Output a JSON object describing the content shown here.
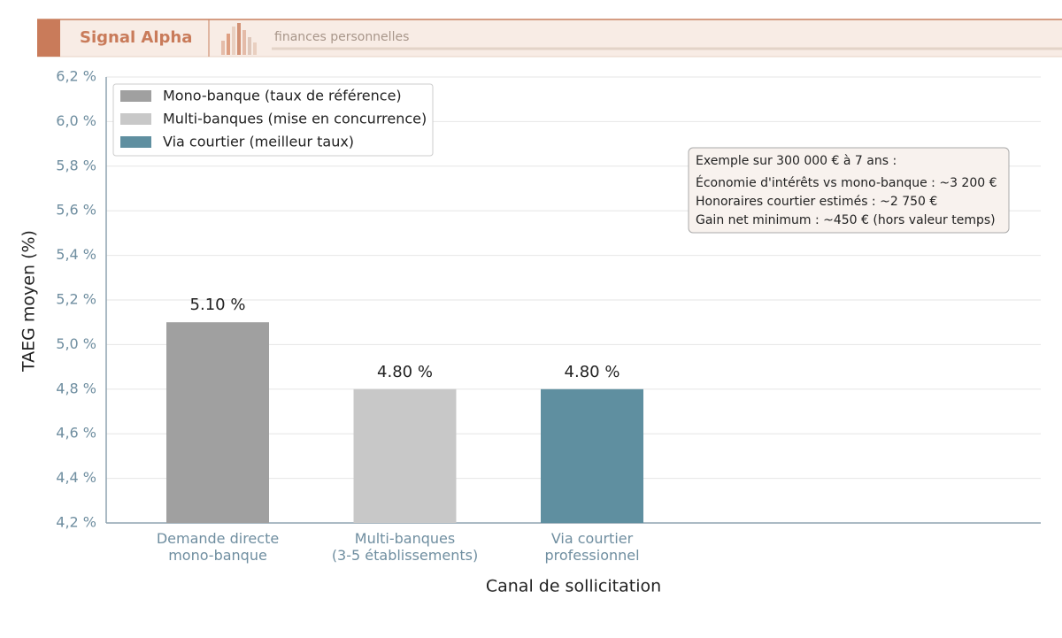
{
  "header": {
    "brand": "Signal Alpha",
    "tagline": "finances personnelles"
  },
  "chart_data": {
    "type": "bar",
    "ylabel": "TAEG moyen (%)",
    "xlabel": "Canal de sollicitation",
    "categories": [
      [
        "Demande directe",
        "mono-banque"
      ],
      [
        "Multi-banques",
        "(3-5 établissements)"
      ],
      [
        "Via courtier",
        "professionnel"
      ]
    ],
    "values": [
      5.1,
      4.8,
      4.8
    ],
    "value_labels": [
      "5.10 %",
      "4.80 %",
      "4.80 %"
    ],
    "colors": [
      "#a0a0a0",
      "#c8c8c8",
      "#5f8fa0"
    ],
    "legend": [
      "Mono-banque (taux de référence)",
      "Multi-banques (mise en concurrence)",
      "Via courtier (meilleur taux)"
    ],
    "legend_position": "upper left",
    "annotation": [
      "Exemple sur 300 000 € à 7 ans :",
      "Économie d'intérêts vs mono-banque : ~3 200 €",
      "Honoraires courtier estimés : ~2 750 €",
      "Gain net minimum : ~450 € (hors valeur temps)"
    ],
    "ylim": [
      4.2,
      6.2
    ],
    "yticks": [
      {
        "value": 4.2,
        "label": "4,2 %"
      },
      {
        "value": 4.4,
        "label": "4,4 %"
      },
      {
        "value": 4.6,
        "label": "4,6 %"
      },
      {
        "value": 4.8,
        "label": "4,8 %"
      },
      {
        "value": 5.0,
        "label": "5,0 %"
      },
      {
        "value": 5.2,
        "label": "5,2 %"
      },
      {
        "value": 5.4,
        "label": "5,4 %"
      },
      {
        "value": 5.6,
        "label": "5,6 %"
      },
      {
        "value": 5.8,
        "label": "5,8 %"
      },
      {
        "value": 6.0,
        "label": "6,0 %"
      },
      {
        "value": 6.2,
        "label": "6,2 %"
      }
    ],
    "grid": true
  }
}
